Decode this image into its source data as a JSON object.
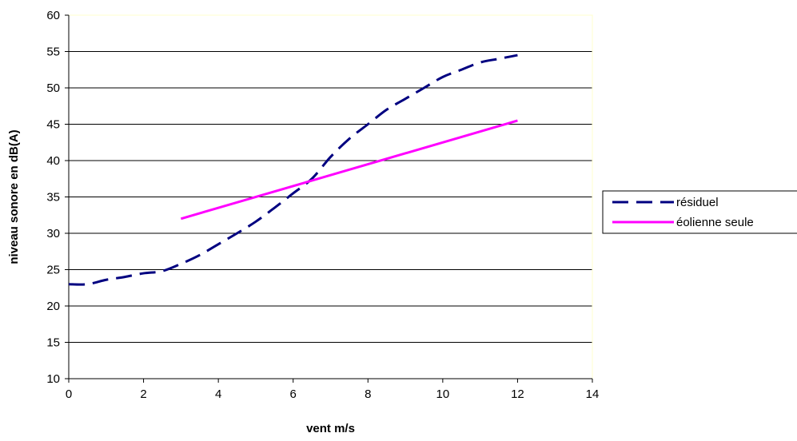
{
  "chart_data": {
    "type": "line",
    "title": "",
    "xlabel": "vent m/s",
    "ylabel": "niveau sonore en dB(A)",
    "xlim": [
      0,
      14
    ],
    "ylim": [
      10,
      60
    ],
    "xticks": [
      0,
      2,
      4,
      6,
      8,
      10,
      12,
      14
    ],
    "yticks": [
      10,
      15,
      20,
      25,
      30,
      35,
      40,
      45,
      50,
      55,
      60
    ],
    "grid": "horizontal",
    "legend_position": "right",
    "plot_background": "#ffffff",
    "plot_border_color": "#ffffcc",
    "series": [
      {
        "name": "résiduel",
        "color": "#000080",
        "style": "dashed",
        "x": [
          0,
          0.5,
          1,
          1.5,
          2,
          2.5,
          3,
          3.5,
          4,
          4.5,
          5,
          5.5,
          6,
          6.5,
          7,
          7.5,
          8,
          8.5,
          9,
          9.5,
          10,
          10.5,
          11,
          11.5,
          12
        ],
        "y": [
          23,
          23,
          23.6,
          24,
          24.5,
          24.8,
          25.8,
          27,
          28.5,
          30,
          31.6,
          33.5,
          35.5,
          37.5,
          40.5,
          43,
          45,
          47,
          48.5,
          50,
          51.5,
          52.5,
          53.5,
          54,
          54.5
        ]
      },
      {
        "name": "éolienne seule",
        "color": "#ff00ff",
        "style": "solid",
        "x": [
          3,
          12
        ],
        "y": [
          32,
          45.5
        ]
      }
    ]
  }
}
